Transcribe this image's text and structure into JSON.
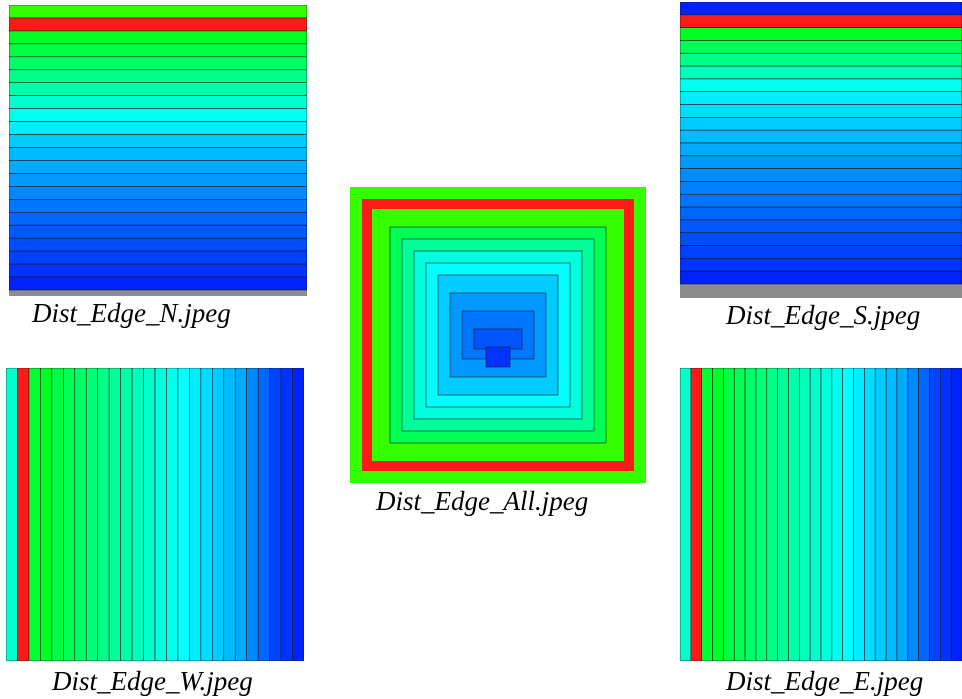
{
  "captions": {
    "north": "Dist_Edge_N.jpeg",
    "south": "Dist_Edge_S.jpeg",
    "all": "Dist_Edge_All.jpeg",
    "west": "Dist_Edge_W.jpeg",
    "east": "Dist_Edge_E.jpeg"
  },
  "colors": {
    "edge_red": "#ff1a1a",
    "bright_green": "#33ff00",
    "frame_gray": "#8c8c8c",
    "band_outline": "#1a1a1a",
    "gradient": [
      "#00ff33",
      "#00ff99",
      "#00ffff",
      "#00aaff",
      "#0055ff",
      "#0022ff"
    ]
  },
  "images": {
    "north": {
      "bands": [
        "#33ff00",
        "#ff1a1a",
        "#00ff22",
        "#00ff44",
        "#00ff66",
        "#00ff88",
        "#00ffaa",
        "#00ffcc",
        "#00ffee",
        "#00eeff",
        "#00ccff",
        "#00bbff",
        "#00aaff",
        "#0099ff",
        "#0088ff",
        "#0077ff",
        "#0066ff",
        "#0059ff",
        "#004cff",
        "#0040ff",
        "#0033ff",
        "#0022ff"
      ]
    },
    "south": {
      "bands": [
        "#0022ff",
        "#ff1a1a",
        "#00ff22",
        "#00ff55",
        "#00ff88",
        "#00ffbb",
        "#00ffee",
        "#00eeff",
        "#00ddff",
        "#00ccff",
        "#00bbff",
        "#00aaff",
        "#0099ff",
        "#008cff",
        "#0080ff",
        "#0073ff",
        "#0066ff",
        "#0059ff",
        "#004cff",
        "#0040ff",
        "#0033ff",
        "#0022ff"
      ]
    },
    "west": {
      "bands": [
        "#00ffcc",
        "#ff1a1a",
        "#00ff33",
        "#00ff22",
        "#00ff44",
        "#00ff55",
        "#00ff66",
        "#00ff77",
        "#00ff88",
        "#00ff99",
        "#00ffaa",
        "#00ffbb",
        "#00ffcc",
        "#00ffdd",
        "#00ffee",
        "#00ffff",
        "#00eeff",
        "#00ddff",
        "#00ccff",
        "#00bbff",
        "#00aaff",
        "#0088ff",
        "#0066ff",
        "#0044ff",
        "#0033ff",
        "#0022ff"
      ]
    },
    "east": {
      "bands": [
        "#00ffcc",
        "#ff1a1a",
        "#00ff33",
        "#00ff22",
        "#00ff44",
        "#00ff55",
        "#00ff66",
        "#00ff77",
        "#00ff88",
        "#00ff99",
        "#00ffaa",
        "#00ffbb",
        "#00ffcc",
        "#00ffdd",
        "#00ffee",
        "#00ffff",
        "#00eeff",
        "#00ddff",
        "#00ccff",
        "#00bbff",
        "#00aaff",
        "#0088ff",
        "#0066ff",
        "#0044ff",
        "#0033ff",
        "#0022ff"
      ]
    },
    "all": {
      "rings": [
        "#33ff00",
        "#ff1a1a",
        "#33ff00",
        "#00ff55",
        "#00ff99",
        "#00ffdd",
        "#00ffff",
        "#00ccff",
        "#0099ff",
        "#0077ff",
        "#0055ff",
        "#0033ff"
      ]
    }
  }
}
